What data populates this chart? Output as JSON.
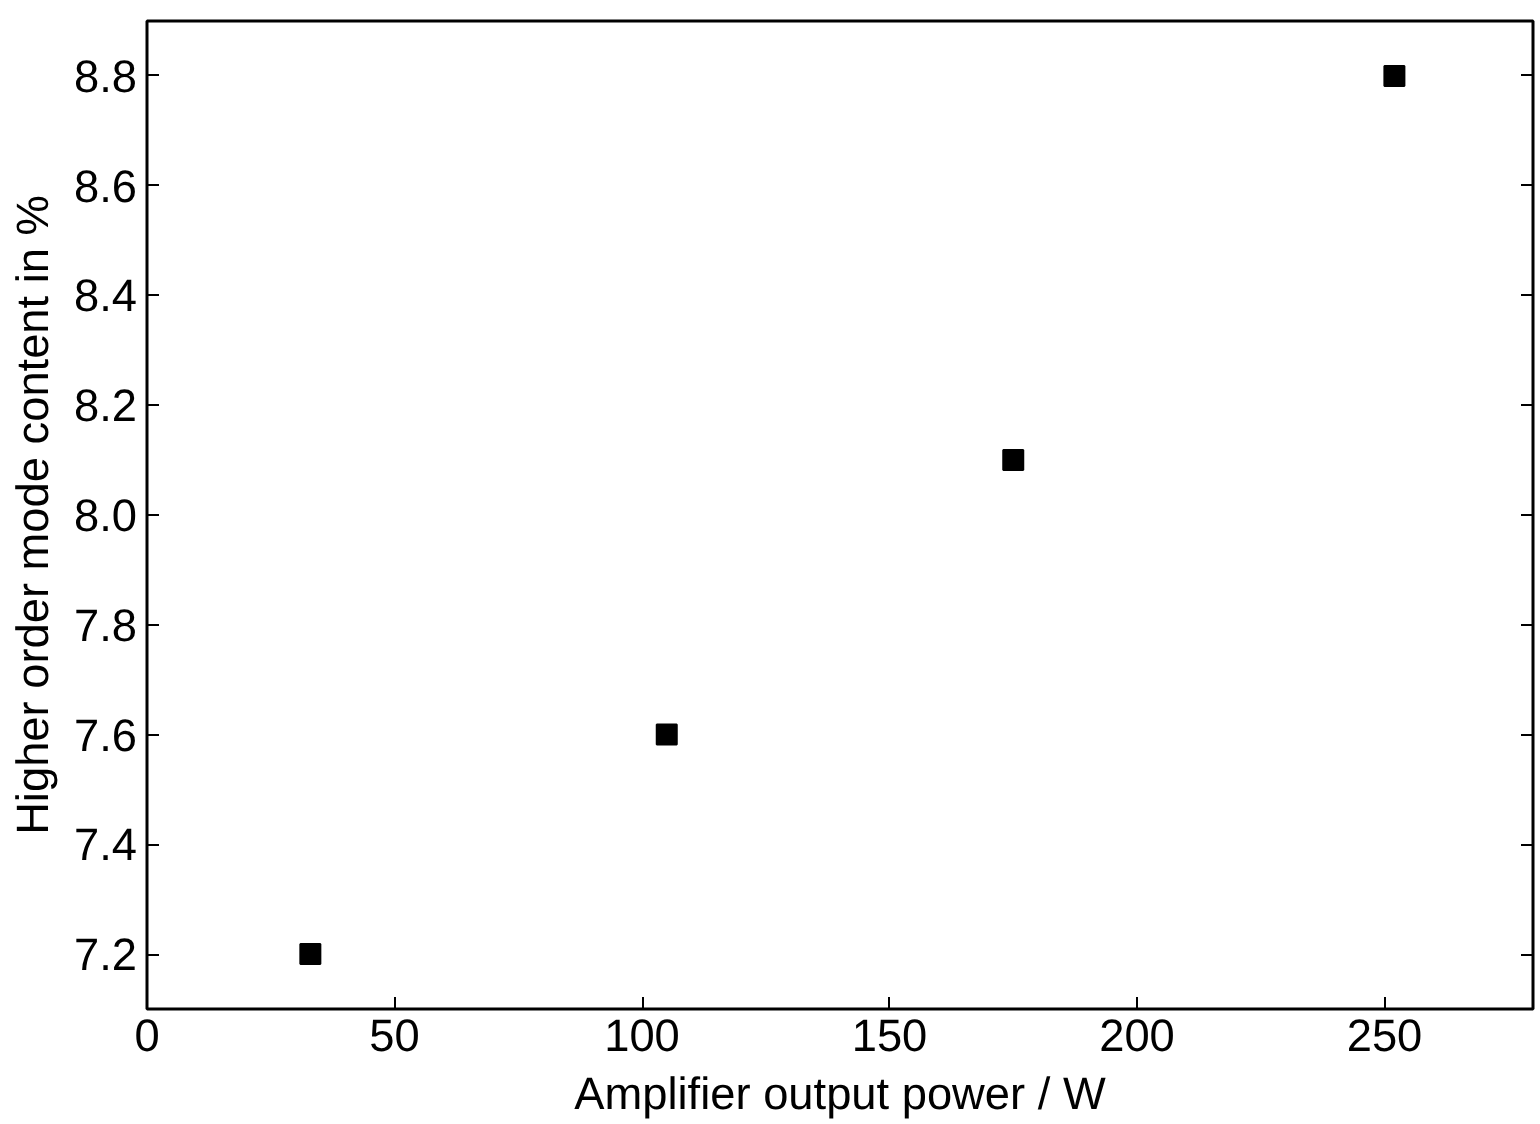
{
  "chart_data": {
    "type": "scatter",
    "xlabel": "Amplifier output power / W",
    "ylabel": "Higher order mode content in %",
    "x": [
      33,
      105,
      175,
      252
    ],
    "values": [
      7.2,
      7.6,
      8.1,
      8.8
    ],
    "color": "#000000",
    "marker": "square",
    "xlim": [
      0,
      280
    ],
    "xticks": [
      0,
      50,
      100,
      150,
      200,
      250
    ],
    "ylim": [
      7.1,
      8.9
    ],
    "yticks": [
      7.2,
      7.4,
      7.6,
      7.8,
      {
        "value": 8,
        "label": "8.0"
      },
      8.2,
      8.4,
      8.6,
      8.8
    ],
    "grid": false
  }
}
